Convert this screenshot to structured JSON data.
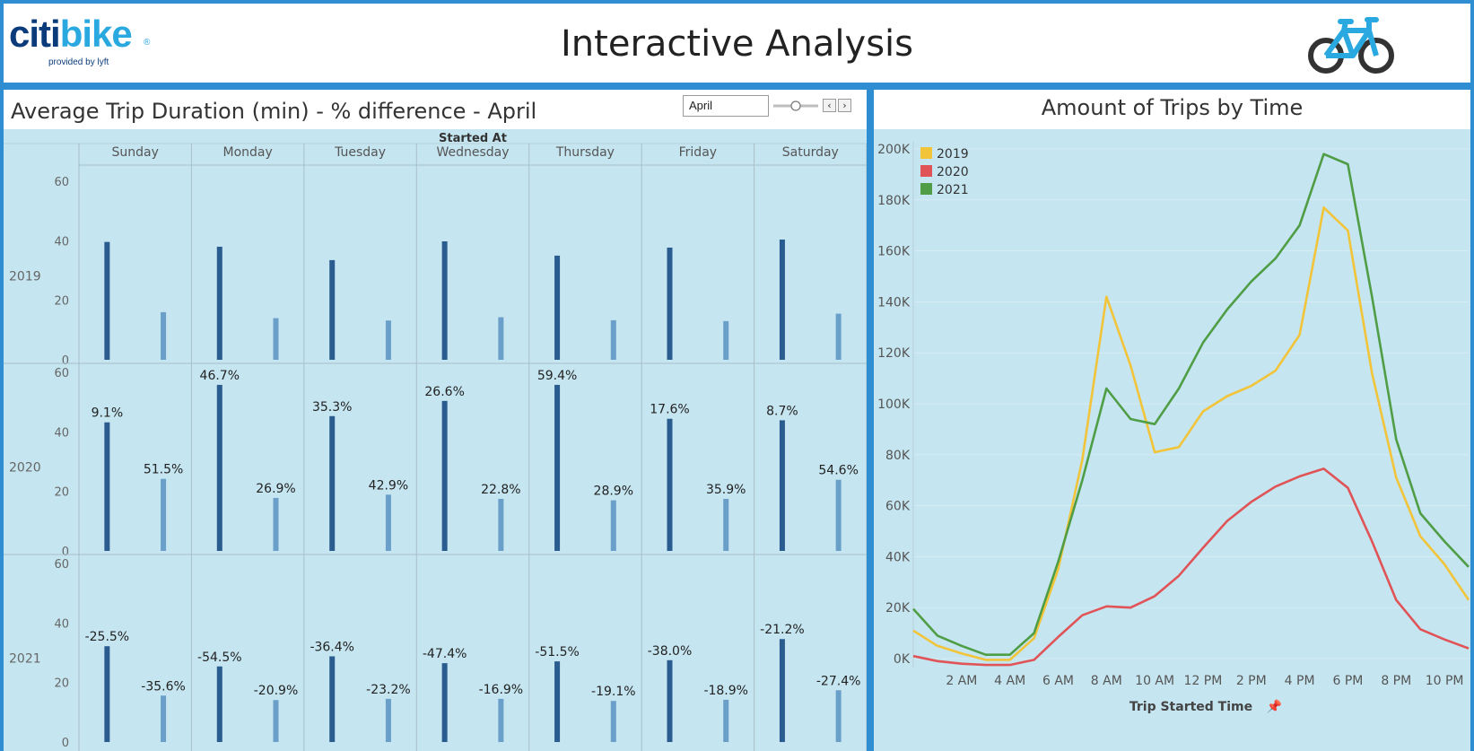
{
  "header": {
    "logo_text_part1": "citi",
    "logo_text_part2": "bike",
    "logo_registered": "®",
    "logo_subtitle": "provided by lyft",
    "title": "Interactive Analysis",
    "bike_icon": "bicycle-icon"
  },
  "left_panel": {
    "title": "Average Trip Duration (min) - % difference - April",
    "month_filter": {
      "value": "April",
      "prev_icon": "chevron-left-icon",
      "next_icon": "chevron-right-icon",
      "prev_label": "‹",
      "next_label": "›"
    }
  },
  "right_panel": {
    "title": "Amount of Trips by Time"
  },
  "colors": {
    "panel_background": "#c5e5f0",
    "border": "#2f8ed1",
    "bar_dark": "#2b5c8f",
    "bar_light": "#6a9fc9",
    "line_2019": "#f2c43a",
    "line_2020": "#e05458",
    "line_2021": "#4f9d45"
  },
  "chart_data": [
    {
      "type": "bar",
      "title": "Average Trip Duration (min) - % difference - April",
      "column_header": "Started At",
      "columns": [
        "Sunday",
        "Monday",
        "Tuesday",
        "Wednesday",
        "Thursday",
        "Friday",
        "Saturday"
      ],
      "rows": [
        "2019",
        "2020",
        "2021"
      ],
      "y_ticks": [
        "60",
        "40",
        "20",
        "0"
      ],
      "ylim": [
        0,
        60
      ],
      "grid": false,
      "panels": [
        {
          "row": "2019",
          "dark_values": [
            39.6,
            38.0,
            33.5,
            39.8,
            35.0,
            37.7,
            40.4
          ],
          "light_values": [
            16.0,
            14.0,
            13.2,
            14.3,
            13.3,
            13.0,
            15.5
          ],
          "dark_labels": [
            "",
            "",
            "",
            "",
            "",
            "",
            ""
          ],
          "light_labels": [
            "",
            "",
            "",
            "",
            "",
            "",
            ""
          ]
        },
        {
          "row": "2020",
          "dark_values": [
            43.2,
            55.8,
            45.3,
            50.4,
            55.8,
            44.4,
            43.9
          ],
          "light_values": [
            24.2,
            17.8,
            18.9,
            17.5,
            17.0,
            17.5,
            23.9
          ],
          "dark_labels": [
            "9.1%",
            "46.7%",
            "35.3%",
            "26.6%",
            "59.4%",
            "17.6%",
            "8.7%"
          ],
          "light_labels": [
            "51.5%",
            "26.9%",
            "42.9%",
            "22.8%",
            "28.9%",
            "35.9%",
            "54.6%"
          ]
        },
        {
          "row": "2021",
          "dark_values": [
            32.2,
            25.4,
            28.8,
            26.5,
            27.1,
            27.5,
            34.6
          ],
          "light_values": [
            15.6,
            14.1,
            14.5,
            14.5,
            13.8,
            14.2,
            17.4
          ],
          "dark_labels": [
            "-25.5%",
            "-54.5%",
            "-36.4%",
            "-47.4%",
            "-51.5%",
            "-38.0%",
            "-21.2%"
          ],
          "light_labels": [
            "-35.6%",
            "-20.9%",
            "-23.2%",
            "-16.9%",
            "-19.1%",
            "-18.9%",
            "-27.4%"
          ]
        }
      ]
    },
    {
      "type": "line",
      "title": "Amount of Trips by Time",
      "xlabel": "Trip Started Time",
      "x": [
        0,
        1,
        2,
        3,
        4,
        5,
        6,
        7,
        8,
        9,
        10,
        11,
        12,
        13,
        14,
        15,
        16,
        17,
        18,
        19,
        20,
        21,
        22,
        23
      ],
      "x_tick_values": [
        2,
        4,
        6,
        8,
        10,
        12,
        14,
        16,
        18,
        20,
        22
      ],
      "x_tick_labels": [
        "2 AM",
        "4 AM",
        "6 AM",
        "8 AM",
        "10 AM",
        "12 PM",
        "2 PM",
        "4 PM",
        "6 PM",
        "8 PM",
        "10 PM"
      ],
      "y_ticks": [
        "200K",
        "180K",
        "160K",
        "140K",
        "120K",
        "100K",
        "80K",
        "60K",
        "40K",
        "20K",
        "0K"
      ],
      "y_tick_values": [
        200000,
        180000,
        160000,
        140000,
        120000,
        100000,
        80000,
        60000,
        40000,
        20000,
        0
      ],
      "ylim": [
        0,
        200000
      ],
      "xlim": [
        0,
        23
      ],
      "legend_position": "top-left",
      "grid": true,
      "series": [
        {
          "name": "2019",
          "color": "#f2c43a",
          "values": [
            11000,
            5000,
            2000,
            -500,
            -500,
            8000,
            35000,
            78000,
            142000,
            115000,
            81000,
            83000,
            97000,
            103000,
            107000,
            113000,
            127000,
            177000,
            168000,
            112000,
            71000,
            48000,
            37000,
            23000
          ]
        },
        {
          "name": "2020",
          "color": "#e05458",
          "values": [
            1000,
            -1000,
            -2000,
            -2500,
            -2500,
            -500,
            8500,
            17000,
            20500,
            20000,
            24500,
            32500,
            43500,
            54000,
            61500,
            67500,
            71500,
            74500,
            67000,
            46000,
            23000,
            11500,
            7500,
            4000
          ]
        },
        {
          "name": "2021",
          "color": "#4f9d45",
          "values": [
            19500,
            9000,
            5000,
            1500,
            1500,
            10000,
            38000,
            70000,
            106000,
            94000,
            92000,
            106000,
            124000,
            137000,
            148000,
            157000,
            170000,
            198000,
            194000,
            142000,
            86000,
            57000,
            46000,
            36000
          ]
        }
      ]
    }
  ]
}
